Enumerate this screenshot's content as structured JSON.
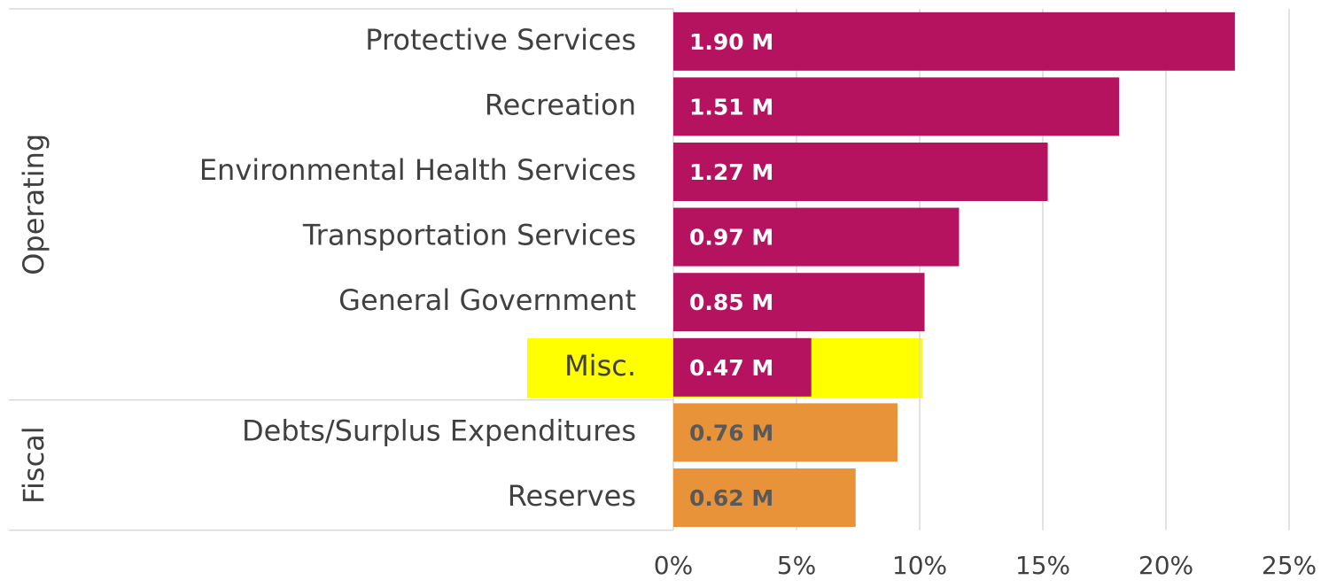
{
  "chart_data": {
    "type": "bar",
    "orientation": "horizontal",
    "series": [
      {
        "name": "Operating",
        "color": "#b5135f",
        "label_color": "#ffffff",
        "categories": [
          "Protective Services",
          "Recreation",
          "Environmental Health Services",
          "Transportation Services",
          "General Government",
          "Misc."
        ],
        "values": [
          22.8,
          18.1,
          15.2,
          11.6,
          10.2,
          5.6
        ],
        "value_labels": [
          "1.90 M",
          "1.51 M",
          "1.27 M",
          "0.97 M",
          "0.85 M",
          "0.47 M"
        ]
      },
      {
        "name": "Fiscal",
        "color": "#e8923a",
        "label_color": "#595959",
        "categories": [
          "Debts/Surplus Expenditures",
          "Reserves"
        ],
        "values": [
          9.1,
          7.4
        ],
        "value_labels": [
          "0.76 M",
          "0.62 M"
        ]
      }
    ],
    "xlim": [
      0,
      25
    ],
    "xticks": [
      {
        "value": 0,
        "label": "0%"
      },
      {
        "value": 5,
        "label": "5%"
      },
      {
        "value": 10,
        "label": "10%"
      },
      {
        "value": 15,
        "label": "15%"
      },
      {
        "value": 20,
        "label": "20%"
      },
      {
        "value": 25,
        "label": "25%"
      }
    ],
    "grid": true,
    "highlight": {
      "series": 0,
      "index": 5,
      "color": "#ffff00"
    }
  }
}
